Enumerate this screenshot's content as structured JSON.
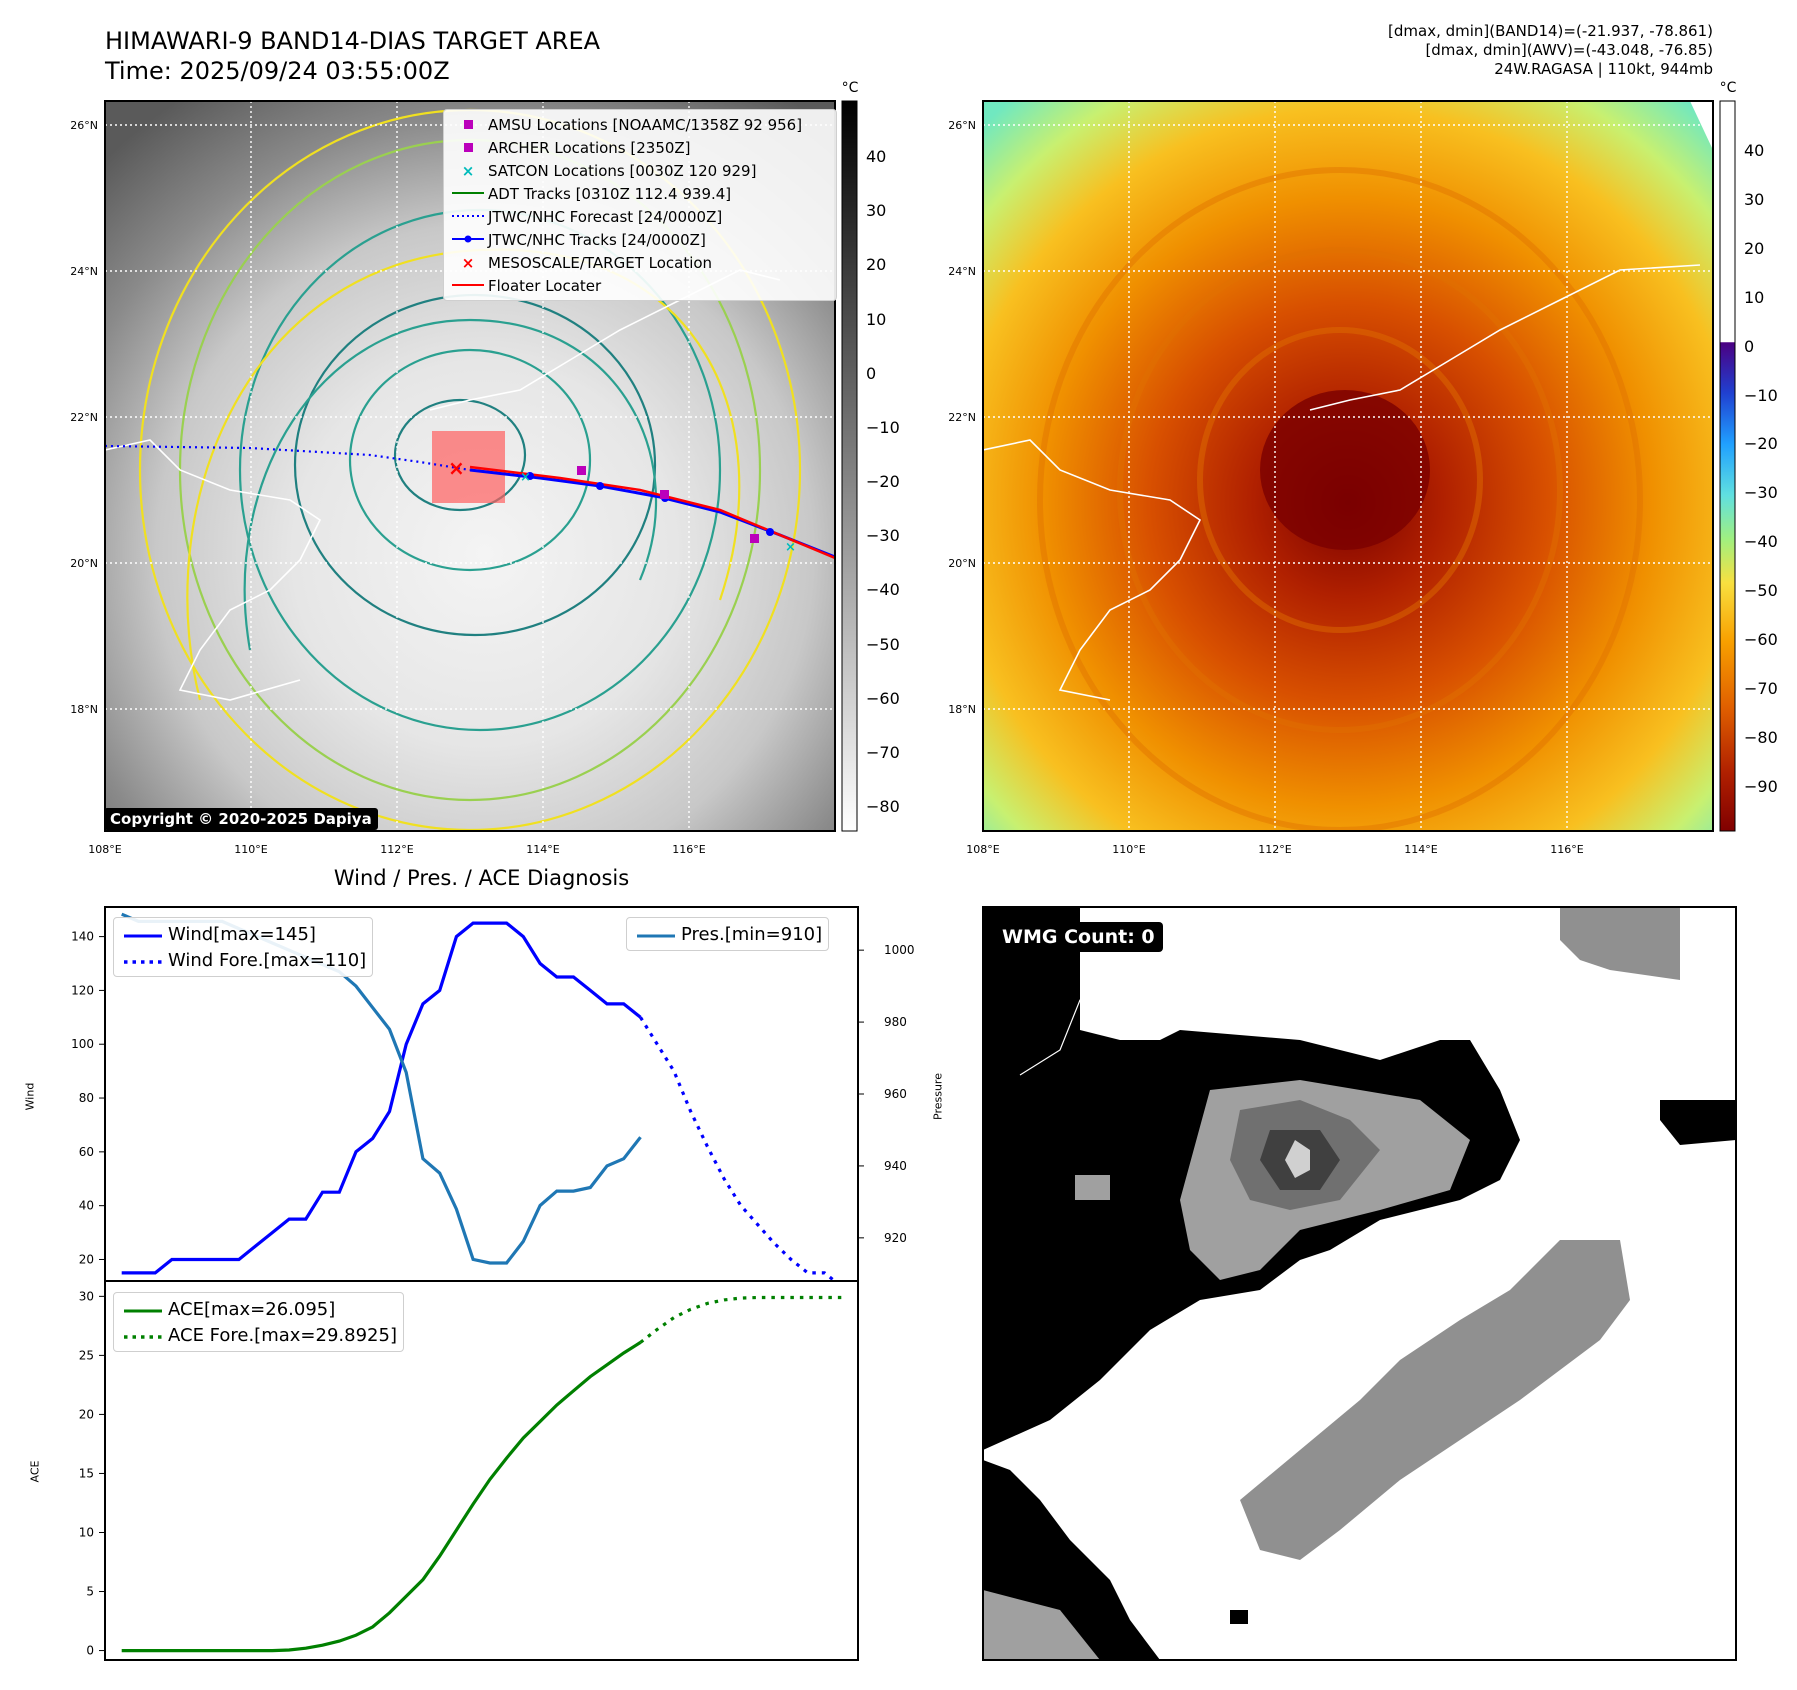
{
  "header": {
    "title_line1": "HIMAWARI-9 BAND14-DIAS TARGET AREA",
    "title_line2": "Time: 2025/09/24 03:55:00Z",
    "right_line1": "[dmax, dmin](BAND14)=(-21.937, -78.861)",
    "right_line2": "[dmax, dmin](AWV)=(-43.048, -76.85)",
    "right_line3": "24W.RAGASA | 110kt, 944mb"
  },
  "map_axes": {
    "lat_ticks": [
      "26°N",
      "24°N",
      "22°N",
      "20°N",
      "18°N"
    ],
    "lon_ticks": [
      "108°E",
      "110°E",
      "112°E",
      "114°E",
      "116°E"
    ]
  },
  "colorbar_gray": {
    "unit": "°C",
    "ticks": [
      "40",
      "30",
      "20",
      "10",
      "0",
      "−10",
      "−20",
      "−30",
      "−40",
      "−50",
      "−60",
      "−70",
      "−80"
    ]
  },
  "colorbar_color": {
    "unit": "°C",
    "ticks": [
      "40",
      "30",
      "20",
      "10",
      "0",
      "−10",
      "−20",
      "−30",
      "−40",
      "−50",
      "−60",
      "−70",
      "−80",
      "−90"
    ]
  },
  "map_legend": {
    "items": [
      {
        "label": "AMSU Locations [NOAAMC/1358Z 92 956]",
        "color": "#bb00bb",
        "symbol": "square"
      },
      {
        "label": "ARCHER Locations [2350Z]",
        "color": "#bb00bb",
        "symbol": "square"
      },
      {
        "label": "SATCON Locations [0030Z 120 929]",
        "color": "#00bbbb",
        "symbol": "x"
      },
      {
        "label": "ADT Tracks [0310Z 112.4 939.4]",
        "color": "#008000",
        "symbol": "line"
      },
      {
        "label": "JTWC/NHC Forecast [24/0000Z]",
        "color": "#0000ff",
        "symbol": "dotted"
      },
      {
        "label": "JTWC/NHC Tracks [24/0000Z]",
        "color": "#0000ff",
        "symbol": "line-dot"
      },
      {
        "label": "MESOSCALE/TARGET Location",
        "color": "#ff0000",
        "symbol": "x"
      },
      {
        "label": "Floater Locater",
        "color": "#ff0000",
        "symbol": "line"
      }
    ]
  },
  "copyright": "Copyright © 2020-2025 Dapiya",
  "wmg_label": "WMG Count: 0",
  "diagnosis": {
    "title": "Wind / Pres. / ACE Diagnosis",
    "wind_ylabel": "Wind",
    "pres_ylabel": "Pressure",
    "ace_ylabel": "ACE",
    "legend_wind": "Wind[max=145]",
    "legend_wind_fore": "Wind Fore.[max=110]",
    "legend_pres": "Pres.[min=910]",
    "legend_ace": "ACE[max=26.095]",
    "legend_ace_fore": "ACE Fore.[max=29.8925]"
  },
  "chart_data": [
    {
      "type": "line",
      "name": "wind-pressure",
      "x": [
        0,
        1,
        2,
        3,
        4,
        5,
        6,
        7,
        8,
        9,
        10,
        11,
        12,
        13,
        14,
        15,
        16,
        17,
        18,
        19,
        20,
        21,
        22,
        23,
        24,
        25,
        26,
        27,
        28,
        29,
        30,
        31
      ],
      "series": [
        {
          "name": "Wind[max=145]",
          "axis": "left",
          "color": "#0000ff",
          "style": "solid",
          "values": [
            15,
            15,
            15,
            20,
            20,
            20,
            20,
            20,
            25,
            30,
            35,
            35,
            45,
            45,
            60,
            65,
            75,
            100,
            115,
            120,
            140,
            145,
            145,
            145,
            140,
            130,
            125,
            125,
            120,
            115,
            115,
            110
          ]
        },
        {
          "name": "Wind Fore.[max=110]",
          "axis": "left",
          "color": "#0000ff",
          "style": "dotted",
          "x": [
            31,
            32,
            33,
            34,
            35,
            36,
            37,
            38,
            39,
            40,
            41,
            42,
            43
          ],
          "values": [
            110,
            100,
            90,
            75,
            62,
            50,
            40,
            33,
            26,
            20,
            15,
            15,
            10
          ]
        },
        {
          "name": "Pres.[min=910]",
          "axis": "right",
          "color": "#1f77b4",
          "style": "solid",
          "values": [
            1010,
            1008,
            1008,
            1008,
            1008,
            1008,
            1008,
            1006,
            1004,
            1002,
            1000,
            998,
            996,
            994,
            990,
            984,
            978,
            966,
            942,
            938,
            928,
            914,
            913,
            913,
            919,
            929,
            933,
            933,
            934,
            940,
            942,
            948
          ]
        }
      ],
      "ylim_left": [
        12,
        151
      ],
      "ylim_right": [
        908,
        1012
      ],
      "yticks_left": [
        20,
        40,
        60,
        80,
        100,
        120,
        140
      ],
      "yticks_right": [
        920,
        940,
        960,
        980,
        1000
      ],
      "xlabel": "",
      "ylabel": "Wind",
      "ylabel_right": "Pressure",
      "legend_left": "top-left",
      "legend_right": "top-right",
      "grid": false
    },
    {
      "type": "line",
      "name": "ace",
      "x": [
        0,
        1,
        2,
        3,
        4,
        5,
        6,
        7,
        8,
        9,
        10,
        11,
        12,
        13,
        14,
        15,
        16,
        17,
        18,
        19,
        20,
        21,
        22,
        23,
        24,
        25,
        26,
        27,
        28,
        29,
        30,
        31
      ],
      "series": [
        {
          "name": "ACE[max=26.095]",
          "color": "#008000",
          "style": "solid",
          "values": [
            0,
            0,
            0,
            0,
            0,
            0,
            0,
            0,
            0,
            0,
            0.05,
            0.2,
            0.45,
            0.8,
            1.3,
            2.0,
            3.2,
            4.6,
            6.0,
            8.0,
            10.2,
            12.4,
            14.5,
            16.3,
            18.0,
            19.4,
            20.8,
            22.0,
            23.2,
            24.2,
            25.2,
            26.1
          ]
        },
        {
          "name": "ACE Fore.[max=29.8925]",
          "color": "#008000",
          "style": "dotted",
          "x": [
            31,
            32,
            33,
            34,
            35,
            36,
            37,
            38,
            39,
            40,
            41,
            42,
            43
          ],
          "values": [
            26.1,
            27.2,
            28.2,
            28.9,
            29.4,
            29.7,
            29.85,
            29.9,
            29.9,
            29.9,
            29.9,
            29.9,
            29.9
          ]
        }
      ],
      "ylim": [
        -0.8,
        31.3
      ],
      "yticks": [
        0,
        5,
        10,
        15,
        20,
        25,
        30
      ],
      "xlabel": "",
      "ylabel": "ACE",
      "legend": "top-left",
      "grid": false
    }
  ]
}
